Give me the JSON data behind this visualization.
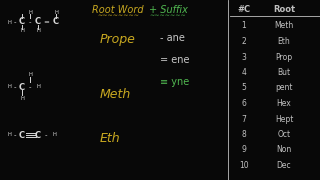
{
  "bg_color": "#080808",
  "white_color": "#d8d8d8",
  "root_color": "#c8a820",
  "suffix_color": "#50b850",
  "hw_color": "#c0c0c0",
  "green_color": "#50b850",
  "title_root": "Root Word",
  "title_suffix": "+ Suffix",
  "prope": "Prope",
  "meth": "Meth",
  "eth": "Eth",
  "numbers": [
    1,
    2,
    3,
    4,
    5,
    6,
    7,
    8,
    9,
    10
  ],
  "roots": [
    "Meth",
    "Eth",
    "Prop",
    "But",
    "pent",
    "Hex",
    "Hept",
    "Oct",
    "Non",
    "Dec"
  ],
  "suffix_items": [
    "- ane",
    "= ene",
    "≡ yne"
  ],
  "suffix_colors": [
    "#c8c8c8",
    "#c8c8c8",
    "#50b850"
  ]
}
